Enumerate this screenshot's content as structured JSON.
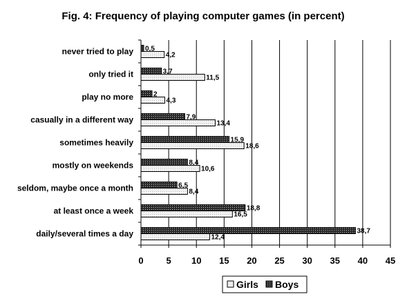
{
  "chart_data": {
    "type": "bar",
    "orientation": "horizontal",
    "title": "Fig. 4: Frequency of playing computer games (in percent)",
    "categories": [
      "never tried to play",
      "only tried it",
      "play no more",
      "casually in a different way",
      "sometimes heavily",
      "mostly on weekends",
      "seldom, maybe once a month",
      "at least once a week",
      "daily/several times a day"
    ],
    "series": [
      {
        "name": "Boys",
        "values": [
          0.5,
          3.7,
          2,
          7.9,
          15.9,
          8.4,
          6.5,
          18.8,
          38.7
        ],
        "labels": [
          "0,5",
          "3,7",
          "2",
          "7,9",
          "15,9",
          "8,4",
          "6,5",
          "18,8",
          "38,7"
        ],
        "pattern": "dark-dotted"
      },
      {
        "name": "Girls",
        "values": [
          4.2,
          11.5,
          4.3,
          13.4,
          18.6,
          10.6,
          8.4,
          16.5,
          12.4
        ],
        "labels": [
          "4,2",
          "11,5",
          "4,3",
          "13,4",
          "18,6",
          "10,6",
          "8,4",
          "16,5",
          "12,4"
        ],
        "pattern": "light-dotted"
      }
    ],
    "xlim": [
      0,
      45
    ],
    "xticks": [
      0,
      5,
      10,
      15,
      20,
      25,
      30,
      35,
      40,
      45
    ],
    "xticklabels": [
      "0",
      "5",
      "10",
      "15",
      "20",
      "25",
      "30",
      "35",
      "40",
      "45"
    ],
    "grid": "vertical",
    "legend": {
      "position": "bottom-right",
      "entries": [
        "Girls",
        "Boys"
      ]
    }
  }
}
